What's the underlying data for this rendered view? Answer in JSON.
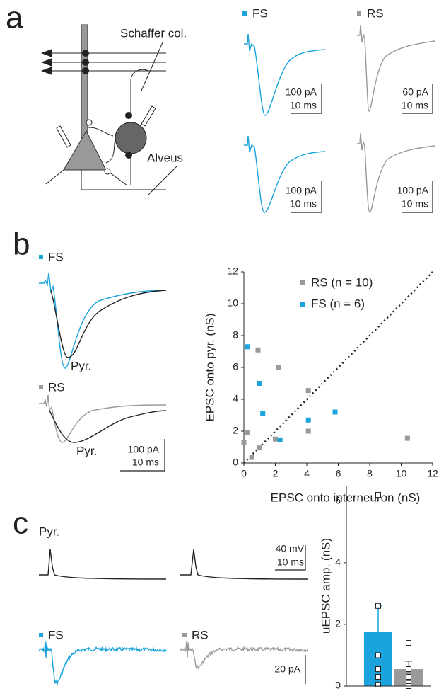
{
  "panels": {
    "a": {
      "label": "a",
      "diagram_labels": [
        "Schaffer col.",
        "Alveus"
      ],
      "legend": [
        "FS",
        "RS"
      ],
      "scales": [
        [
          "100 pA",
          "10 ms"
        ],
        [
          "60 pA",
          "10 ms"
        ],
        [
          "100 pA",
          "10 ms"
        ],
        [
          "100 pA",
          "10 ms"
        ]
      ]
    },
    "b": {
      "label": "b",
      "legend": [
        "FS",
        "RS"
      ],
      "trace_labels": [
        "Pyr.",
        "Pyr."
      ],
      "scale": [
        "100 pA",
        "10 ms"
      ]
    },
    "c": {
      "label": "c",
      "trace_label": "Pyr.",
      "legend": [
        "FS",
        "RS"
      ],
      "scales": [
        "40 mV",
        "10 ms",
        "20 pA"
      ]
    }
  },
  "chart_data": [
    {
      "type": "scatter",
      "xlabel": "EPSC onto interneuron (nS)",
      "ylabel": "EPSC onto pyr. (nS)",
      "xlim": [
        0,
        12
      ],
      "ylim": [
        0,
        12
      ],
      "xticks": [
        0,
        2,
        4,
        6,
        8,
        10,
        12
      ],
      "yticks": [
        0,
        2,
        4,
        6,
        8,
        10,
        12
      ],
      "diagonal": true,
      "series": [
        {
          "name": "RS (n = 10)",
          "color": "#9a9a9a",
          "x": [
            0,
            0.2,
            0.5,
            0.9,
            1.0,
            2.0,
            2.2,
            4.1,
            4.1,
            10.4
          ],
          "y": [
            1.3,
            1.9,
            0.35,
            7.1,
            0.95,
            1.5,
            6.0,
            4.55,
            2.0,
            1.55
          ]
        },
        {
          "name": "FS (n = 6)",
          "color": "#1aa3dc",
          "x": [
            0.2,
            1.0,
            1.2,
            2.3,
            4.1,
            5.8
          ],
          "y": [
            7.3,
            5.0,
            3.1,
            1.45,
            2.7,
            3.2
          ]
        }
      ]
    },
    {
      "type": "bar",
      "ylabel": "uEPSC amp. (nS)",
      "ylim": [
        0,
        6.5
      ],
      "yticks": [
        0,
        2,
        4,
        6
      ],
      "categories": [
        null,
        null
      ],
      "values": [
        1.75,
        0.55
      ],
      "errors": [
        0.85,
        0.25
      ],
      "colors": [
        "#1aa3dc",
        "#9a9a9a"
      ],
      "points": [
        [
          6.2,
          2.6,
          1.0,
          0.55,
          0.3,
          0.05
        ],
        [
          1.4,
          0.55,
          0.3,
          0.1,
          0.0
        ]
      ]
    }
  ]
}
